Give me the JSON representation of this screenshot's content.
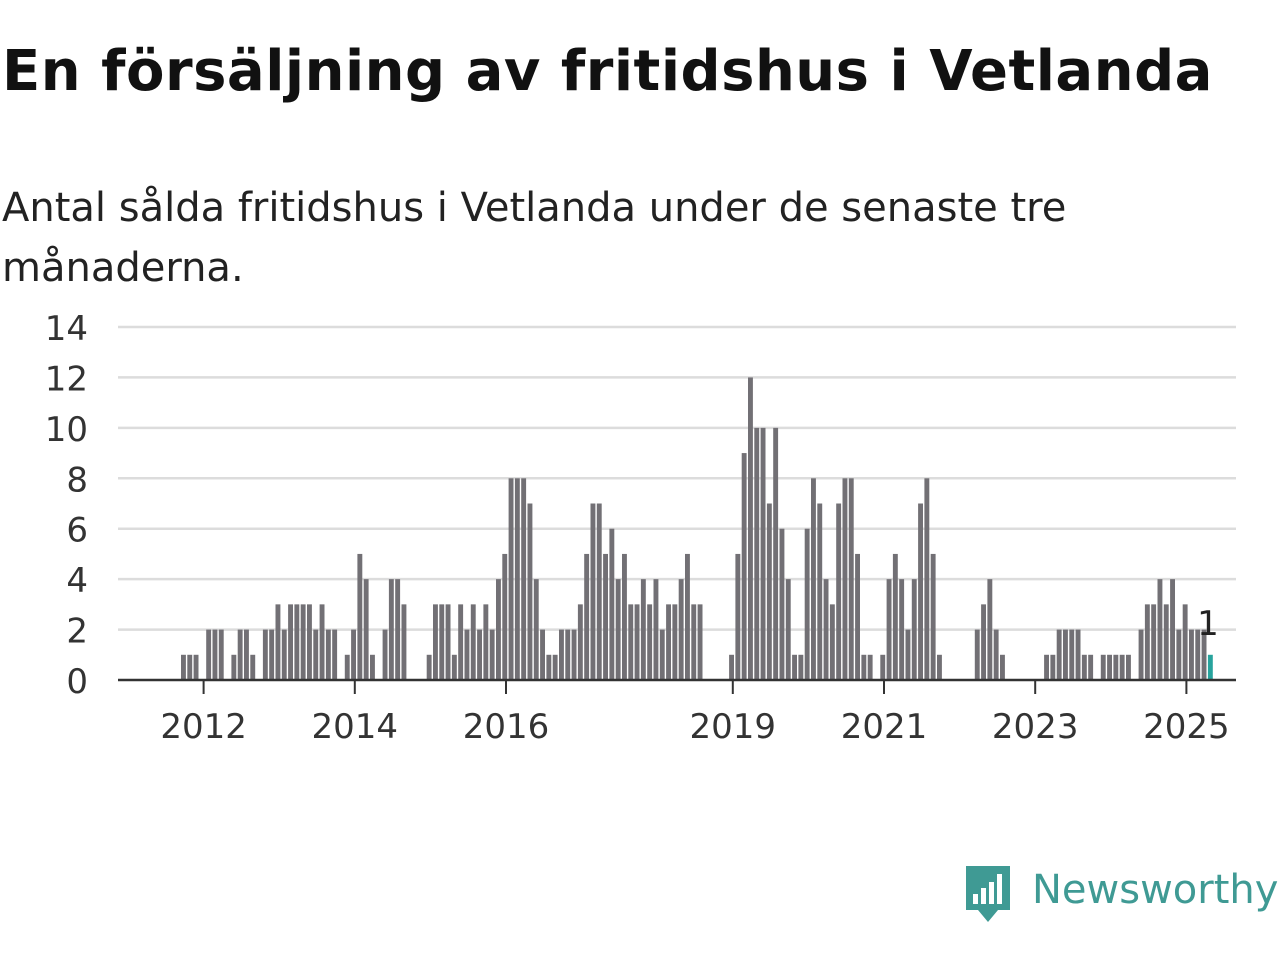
{
  "title": "En försäljning av fritidshus i Vetlanda",
  "subtitle": "Antal sålda fritidshus i Vetlanda under de senaste tre månaderna.",
  "logo": {
    "name": "Newsworthy",
    "icon": "newsworthy-chart-icon"
  },
  "colors": {
    "bar": "#727075",
    "highlight": "#27a39d",
    "grid": "#dcdcdc",
    "axis": "#333333",
    "brand": "#3f9a94"
  },
  "chart_data": {
    "type": "bar",
    "title": "",
    "xlabel": "",
    "ylabel": "",
    "ylim": [
      0,
      14
    ],
    "yticks": [
      0,
      2,
      4,
      6,
      8,
      10,
      12,
      14
    ],
    "xtick_labels": [
      "2012",
      "2014",
      "2016",
      "2019",
      "2021",
      "2023",
      "2025"
    ],
    "grid": true,
    "x_start": "2011-01",
    "x_end": "2025-04",
    "values": [
      0,
      0,
      0,
      0,
      0,
      0,
      0,
      0,
      0,
      0,
      1,
      1,
      1,
      0,
      2,
      2,
      2,
      0,
      1,
      2,
      2,
      1,
      0,
      2,
      2,
      3,
      2,
      3,
      3,
      3,
      3,
      2,
      3,
      2,
      2,
      0,
      1,
      2,
      5,
      4,
      1,
      0,
      2,
      4,
      4,
      3,
      0,
      0,
      0,
      1,
      3,
      3,
      3,
      1,
      3,
      2,
      3,
      2,
      3,
      2,
      4,
      5,
      8,
      8,
      8,
      7,
      4,
      2,
      1,
      1,
      2,
      2,
      2,
      3,
      5,
      7,
      7,
      5,
      6,
      4,
      5,
      3,
      3,
      4,
      3,
      4,
      2,
      3,
      3,
      4,
      5,
      3,
      3,
      0,
      0,
      0,
      0,
      1,
      5,
      9,
      12,
      10,
      10,
      7,
      10,
      6,
      4,
      1,
      1,
      6,
      8,
      7,
      4,
      3,
      7,
      8,
      8,
      5,
      1,
      1,
      0,
      1,
      4,
      5,
      4,
      2,
      4,
      7,
      8,
      5,
      1,
      0,
      0,
      0,
      0,
      0,
      2,
      3,
      4,
      2,
      1,
      0,
      0,
      0,
      0,
      0,
      0,
      1,
      1,
      2,
      2,
      2,
      2,
      1,
      1,
      0,
      1,
      1,
      1,
      1,
      1,
      0,
      2,
      3,
      3,
      4,
      3,
      4,
      2,
      3,
      2,
      2,
      2,
      1
    ],
    "highlight_label": "1"
  }
}
